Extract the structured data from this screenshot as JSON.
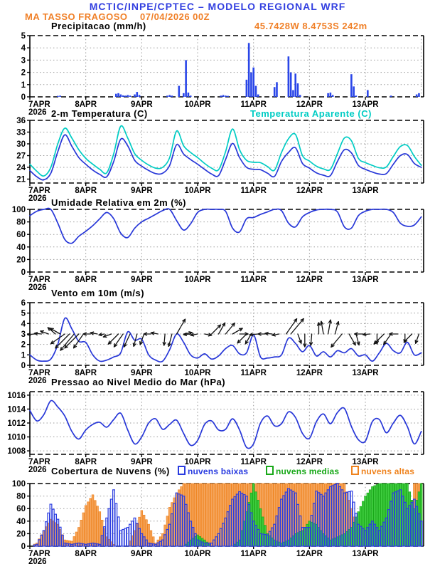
{
  "header": {
    "title": "MCTIC/INPE/CPTEC – MODELO REGIONAL WRF",
    "station": "MA TASSO FRAGOSO",
    "run": "07/04/2026 00Z",
    "location": "45.7428W 8.4753S 242m"
  },
  "x_axis": {
    "day_labels": [
      "7APR",
      "8APR",
      "9APR",
      "10APR",
      "11APR",
      "12APR",
      "13APR"
    ],
    "year": "2026",
    "hours_total": 169,
    "step_hours": 3
  },
  "colors": {
    "header_blue": "#3340e0",
    "orange": "#f08028",
    "line_blue": "#2737d8",
    "cyan": "#00ccc4",
    "bar_blue": "#2a46e8",
    "cloud_low": "#2a3ce0",
    "cloud_mid_fill": "#3ecc3e",
    "cloud_mid_edge": "#18a818",
    "cloud_high_fill": "#f5a55c",
    "cloud_high_edge": "#ef831e",
    "grid": "#999999",
    "axis": "#000000",
    "arrow": "#111111"
  },
  "chart_data": [
    {
      "id": "precipitation",
      "type": "bar",
      "title": "Precipitacao (mm/h)",
      "ylim": [
        0,
        5
      ],
      "yticks": [
        0,
        1,
        2,
        3,
        4,
        5
      ],
      "bars": {
        "hours": [
          12,
          13,
          37,
          38,
          39,
          40,
          41,
          42,
          43,
          45,
          46,
          47,
          59,
          60,
          61,
          64,
          66,
          67,
          68,
          69,
          82,
          83,
          84,
          85,
          93,
          94,
          95,
          96,
          97,
          98,
          105,
          106,
          111,
          112,
          113,
          114,
          115,
          116,
          128,
          129,
          130,
          138,
          139,
          140,
          145,
          155,
          166,
          167
        ],
        "values": [
          0.08,
          0.1,
          0.25,
          0.3,
          0.2,
          0.12,
          0.1,
          0.15,
          0.1,
          0.2,
          0.4,
          0.15,
          0.1,
          0.15,
          0.1,
          0.9,
          0.3,
          3.0,
          0.35,
          0.1,
          0.1,
          0.15,
          0.1,
          0.08,
          1.4,
          4.4,
          2.0,
          2.4,
          0.9,
          0.2,
          0.8,
          1.2,
          3.3,
          2.0,
          0.55,
          1.9,
          1.1,
          0.15,
          0.3,
          0.35,
          0.15,
          1.85,
          0.85,
          0.1,
          0.55,
          0.1,
          0.2,
          0.3
        ]
      }
    },
    {
      "id": "temperature",
      "type": "line",
      "title": "2-m Temperatura (C)",
      "ylim": [
        20,
        36
      ],
      "yticks": [
        21,
        24,
        27,
        30,
        33,
        36
      ],
      "series": [
        {
          "name": "2-m Temperatura (C)",
          "color_key": "line_blue",
          "values": [
            23.2,
            21.6,
            20.8,
            22.5,
            28.0,
            32.3,
            29.4,
            26.5,
            24.8,
            23.3,
            22.2,
            21.6,
            25.5,
            31.2,
            29.5,
            25.8,
            24.3,
            23.2,
            22.4,
            22.5,
            24.5,
            29.8,
            27.4,
            26.0,
            24.8,
            23.5,
            22.3,
            21.9,
            26.0,
            30.1,
            26.5,
            24.0,
            23.5,
            23.4,
            22.5,
            21.7,
            25.5,
            27.8,
            29.0,
            25.0,
            23.8,
            22.6,
            22.0,
            21.9,
            25.5,
            28.5,
            27.7,
            24.5,
            23.5,
            22.8,
            22.3,
            22.4,
            24.8,
            27.0,
            27.3,
            25.0,
            24.0
          ]
        },
        {
          "name": "Temperatura Aparente (C)",
          "color_key": "cyan",
          "values": [
            24.8,
            23.0,
            21.8,
            24.0,
            30.0,
            34.0,
            31.5,
            28.5,
            26.3,
            24.8,
            23.5,
            22.6,
            27.5,
            34.5,
            31.5,
            27.5,
            25.8,
            24.6,
            23.8,
            24.0,
            26.5,
            33.3,
            29.5,
            27.8,
            26.5,
            25.0,
            23.8,
            23.4,
            28.0,
            33.8,
            28.5,
            25.8,
            25.3,
            25.2,
            24.2,
            23.3,
            27.8,
            31.3,
            32.4,
            27.0,
            25.6,
            24.3,
            23.6,
            23.5,
            27.5,
            31.5,
            30.8,
            26.3,
            25.2,
            24.5,
            23.9,
            24.1,
            26.8,
            29.3,
            29.6,
            26.8,
            24.5
          ]
        }
      ]
    },
    {
      "id": "humidity",
      "type": "line",
      "title": "Umidade Relativa em 2m (%)",
      "ylim": [
        0,
        100
      ],
      "yticks": [
        0,
        20,
        40,
        60,
        80,
        100
      ],
      "series": [
        {
          "name": "Umidade Relativa em 2m (%)",
          "color_key": "line_blue",
          "values": [
            90,
            97,
            100,
            100,
            78,
            52,
            46,
            57,
            65,
            74,
            85,
            95,
            85,
            62,
            55,
            70,
            80,
            86,
            92,
            98,
            100,
            82,
            67,
            77,
            95,
            100,
            100,
            100,
            97,
            70,
            64,
            85,
            87,
            92,
            96,
            100,
            98,
            78,
            72,
            88,
            95,
            99,
            100,
            100,
            96,
            72,
            70,
            90,
            97,
            100,
            100,
            100,
            95,
            78,
            73,
            75,
            88
          ]
        }
      ]
    },
    {
      "id": "wind",
      "type": "wind",
      "title": "Vento em 10m (m/s)",
      "ylim": [
        0,
        6
      ],
      "yticks": [
        0,
        1,
        2,
        3,
        4,
        5,
        6
      ],
      "arrow_baseline": 3,
      "series": [
        {
          "name": "Vento em 10m (m/s)",
          "color_key": "line_blue",
          "values": [
            1.0,
            0.5,
            0.4,
            0.6,
            2.0,
            4.5,
            3.5,
            2.3,
            2.2,
            1.0,
            0.4,
            0.5,
            0.8,
            1.2,
            3.2,
            2.4,
            2.5,
            1.0,
            0.5,
            0.4,
            1.5,
            3.0,
            2.2,
            1.0,
            0.7,
            1.1,
            0.6,
            0.9,
            1.6,
            1.9,
            1.1,
            1.2,
            2.9,
            0.8,
            0.7,
            0.8,
            1.0,
            2.6,
            2.1,
            1.3,
            1.9,
            0.9,
            1.3,
            0.8,
            1.4,
            1.2,
            1.6,
            0.9,
            1.0,
            0.4,
            1.2,
            2.1,
            1.4,
            1.2,
            2.2,
            1.0,
            1.2
          ]
        }
      ],
      "arrows": [
        [
          2,
          185,
          0.5
        ],
        [
          5,
          175,
          0.5
        ],
        [
          8,
          160,
          0.6
        ],
        [
          11,
          140,
          0.7
        ],
        [
          13,
          150,
          0.8
        ],
        [
          15,
          215,
          1.2
        ],
        [
          17,
          225,
          1.4
        ],
        [
          19,
          230,
          1.5
        ],
        [
          21,
          225,
          1.4
        ],
        [
          23,
          235,
          1.2
        ],
        [
          26,
          180,
          0.5
        ],
        [
          29,
          170,
          0.5
        ],
        [
          32,
          190,
          0.4
        ],
        [
          35,
          200,
          0.6
        ],
        [
          38,
          225,
          1.0
        ],
        [
          40,
          235,
          1.1
        ],
        [
          43,
          245,
          1.0
        ],
        [
          46,
          255,
          0.9
        ],
        [
          49,
          250,
          0.8
        ],
        [
          52,
          180,
          0.5
        ],
        [
          55,
          170,
          0.5
        ],
        [
          58,
          265,
          0.8
        ],
        [
          61,
          255,
          0.9
        ],
        [
          63,
          60,
          1.2
        ],
        [
          66,
          10,
          0.6
        ],
        [
          69,
          185,
          0.5
        ],
        [
          72,
          190,
          0.5
        ],
        [
          75,
          350,
          0.5
        ],
        [
          78,
          45,
          0.9
        ],
        [
          81,
          60,
          0.9
        ],
        [
          84,
          50,
          1.0
        ],
        [
          87,
          30,
          0.8
        ],
        [
          90,
          0,
          0.6
        ],
        [
          93,
          225,
          0.9
        ],
        [
          95,
          240,
          0.8
        ],
        [
          98,
          185,
          0.6
        ],
        [
          101,
          180,
          0.5
        ],
        [
          104,
          175,
          0.5
        ],
        [
          107,
          190,
          0.5
        ],
        [
          110,
          55,
          1.3
        ],
        [
          112,
          50,
          1.4
        ],
        [
          115,
          290,
          0.7
        ],
        [
          118,
          270,
          0.9
        ],
        [
          121,
          265,
          0.8
        ],
        [
          124,
          90,
          0.8
        ],
        [
          126,
          100,
          0.9
        ],
        [
          128,
          80,
          1.0
        ],
        [
          131,
          75,
          0.9
        ],
        [
          134,
          230,
          1.2
        ],
        [
          137,
          300,
          0.9
        ],
        [
          140,
          285,
          0.8
        ],
        [
          143,
          180,
          0.6
        ],
        [
          146,
          185,
          0.5
        ],
        [
          149,
          270,
          0.7
        ],
        [
          152,
          225,
          1.0
        ],
        [
          155,
          235,
          0.9
        ],
        [
          158,
          180,
          0.6
        ],
        [
          161,
          270,
          0.6
        ],
        [
          164,
          225,
          0.8
        ],
        [
          167,
          250,
          0.7
        ]
      ]
    },
    {
      "id": "pressure",
      "type": "line",
      "title": "Pressao ao Nivel Medio do Mar (hPa)",
      "ylim": [
        1007.5,
        1016.5
      ],
      "yticks": [
        1008,
        1010,
        1012,
        1014,
        1016
      ],
      "series": [
        {
          "name": "Pressao ao Nivel Medio do Mar (hPa)",
          "color_key": "line_blue",
          "values": [
            1013.8,
            1012.3,
            1013.2,
            1015.2,
            1014.3,
            1013.0,
            1010.8,
            1009.7,
            1011.0,
            1011.8,
            1012.1,
            1011.4,
            1012.5,
            1013.4,
            1011.0,
            1009.0,
            1010.0,
            1012.0,
            1012.6,
            1011.1,
            1011.8,
            1012.4,
            1010.5,
            1008.8,
            1009.5,
            1011.8,
            1012.3,
            1011.0,
            1011.1,
            1012.6,
            1011.0,
            1008.5,
            1009.0,
            1012.0,
            1013.0,
            1011.6,
            1011.9,
            1013.6,
            1012.8,
            1010.5,
            1009.8,
            1012.2,
            1013.3,
            1011.9,
            1013.5,
            1014.1,
            1011.5,
            1009.6,
            1009.4,
            1012.2,
            1012.5,
            1010.6,
            1012.0,
            1013.1,
            1011.5,
            1009.0,
            1010.8
          ]
        }
      ]
    },
    {
      "id": "clouds",
      "type": "clouds",
      "title": "Cobertura de Nuvens (%)",
      "ylim": [
        0,
        100
      ],
      "yticks": [
        0,
        20,
        40,
        60,
        80,
        100
      ],
      "series": [
        {
          "name": "nuvens baixas",
          "color_key": "cloud_low",
          "values": [
            0,
            3,
            25,
            67,
            43,
            5,
            3,
            5,
            3,
            5,
            3,
            45,
            90,
            25,
            30,
            45,
            20,
            5,
            3,
            10,
            35,
            85,
            80,
            40,
            10,
            5,
            5,
            20,
            45,
            75,
            87,
            80,
            40,
            20,
            18,
            35,
            75,
            92,
            85,
            30,
            30,
            88,
            80,
            95,
            100,
            85,
            88,
            35,
            25,
            40,
            25,
            45,
            85,
            90,
            60,
            75,
            40
          ]
        },
        {
          "name": "nuvens medias",
          "color_key": "cloud_mid",
          "values": [
            0,
            0,
            0,
            0,
            0,
            0,
            0,
            0,
            0,
            0,
            0,
            0,
            0,
            0,
            0,
            0,
            0,
            0,
            0,
            0,
            0,
            0,
            0,
            10,
            18,
            10,
            0,
            0,
            0,
            0,
            10,
            55,
            100,
            60,
            20,
            10,
            5,
            10,
            20,
            25,
            40,
            35,
            20,
            10,
            15,
            20,
            30,
            55,
            80,
            95,
            100,
            100,
            100,
            100,
            100,
            60,
            100
          ]
        },
        {
          "name": "nuvens altas",
          "color_key": "cloud_high",
          "values": [
            0,
            5,
            25,
            43,
            35,
            10,
            8,
            30,
            65,
            82,
            55,
            15,
            3,
            0,
            0,
            25,
            57,
            35,
            5,
            20,
            62,
            85,
            100,
            100,
            100,
            100,
            100,
            100,
            100,
            100,
            100,
            100,
            100,
            100,
            100,
            100,
            100,
            100,
            100,
            100,
            100,
            100,
            100,
            100,
            100,
            100,
            60,
            20,
            10,
            5,
            5,
            5,
            10,
            5,
            20,
            100,
            100
          ]
        }
      ]
    }
  ]
}
